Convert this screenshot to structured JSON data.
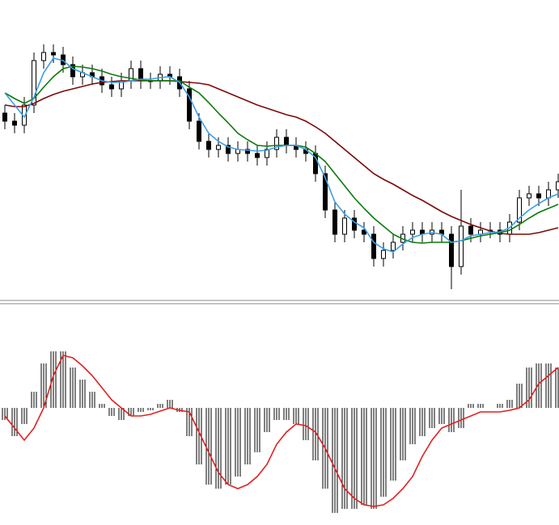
{
  "chart_data": [
    {
      "type": "candlestick",
      "color": "#000000",
      "up_fill": "#ffffff",
      "down_fill": "#000000",
      "ylim": [
        0,
        370
      ],
      "open": [
        230,
        220,
        215,
        240,
        295,
        305,
        302,
        290,
        275,
        280,
        275,
        265,
        260,
        270,
        285,
        270,
        270,
        278,
        275,
        260,
        220,
        195,
        185,
        190,
        180,
        185,
        180,
        175,
        185,
        200,
        190,
        185,
        180,
        155,
        110,
        80,
        100,
        85,
        80,
        50,
        60,
        70,
        80,
        85,
        80,
        85,
        80,
        40,
        90,
        80,
        85,
        85,
        80,
        95,
        125,
        130,
        125,
        135
      ],
      "high": [
        240,
        230,
        250,
        305,
        315,
        315,
        312,
        300,
        290,
        290,
        285,
        275,
        280,
        295,
        295,
        280,
        288,
        288,
        285,
        270,
        230,
        205,
        200,
        200,
        195,
        195,
        190,
        195,
        210,
        210,
        200,
        195,
        190,
        165,
        120,
        110,
        110,
        95,
        90,
        70,
        80,
        90,
        95,
        95,
        95,
        95,
        90,
        135,
        100,
        95,
        95,
        95,
        105,
        135,
        140,
        140,
        145,
        155
      ],
      "low": [
        210,
        205,
        205,
        230,
        285,
        292,
        280,
        265,
        265,
        265,
        255,
        250,
        250,
        260,
        260,
        260,
        260,
        265,
        250,
        210,
        185,
        175,
        175,
        170,
        170,
        170,
        165,
        165,
        175,
        180,
        175,
        170,
        145,
        100,
        70,
        70,
        75,
        70,
        40,
        40,
        50,
        60,
        70,
        70,
        70,
        70,
        12,
        30,
        70,
        70,
        75,
        70,
        70,
        85,
        115,
        115,
        115,
        125
      ],
      "close": [
        220,
        215,
        240,
        295,
        305,
        302,
        290,
        275,
        280,
        275,
        265,
        260,
        270,
        285,
        270,
        270,
        278,
        275,
        260,
        220,
        195,
        185,
        190,
        180,
        185,
        180,
        175,
        185,
        200,
        190,
        185,
        180,
        155,
        110,
        80,
        100,
        85,
        80,
        50,
        60,
        70,
        80,
        85,
        80,
        85,
        80,
        40,
        90,
        80,
        85,
        85,
        80,
        95,
        125,
        130,
        125,
        135,
        145
      ],
      "series": [
        {
          "color": "#7a0a0a",
          "values": [
            240,
            238,
            238,
            242,
            248,
            253,
            257,
            260,
            263,
            266,
            268,
            269,
            270,
            270,
            270,
            270,
            270,
            270,
            269,
            268,
            267,
            265,
            260,
            255,
            250,
            245,
            240,
            236,
            232,
            228,
            225,
            220,
            213,
            205,
            195,
            185,
            175,
            165,
            155,
            148,
            142,
            135,
            128,
            122,
            115,
            108,
            102,
            97,
            92,
            88,
            84,
            81,
            80,
            80,
            80,
            82,
            85,
            88
          ]
        },
        {
          "color": "#0a7a0a",
          "values": [
            255,
            248,
            242,
            248,
            262,
            275,
            285,
            288,
            287,
            285,
            282,
            278,
            275,
            273,
            271,
            270,
            270,
            270,
            270,
            262,
            255,
            243,
            230,
            218,
            205,
            197,
            190,
            189,
            190,
            190,
            190,
            188,
            180,
            170,
            155,
            140,
            125,
            112,
            100,
            90,
            80,
            74,
            70,
            69,
            70,
            70,
            70,
            72,
            75,
            78,
            80,
            82,
            85,
            92,
            100,
            107,
            112,
            117
          ]
        },
        {
          "color": "#3a9ee8",
          "values": [
            255,
            240,
            225,
            250,
            280,
            298,
            295,
            285,
            280,
            275,
            270,
            268,
            268,
            270,
            272,
            272,
            274,
            275,
            268,
            250,
            225,
            205,
            195,
            188,
            185,
            184,
            183,
            184,
            188,
            190,
            190,
            185,
            175,
            150,
            120,
            105,
            95,
            88,
            70,
            62,
            58,
            68,
            76,
            80,
            82,
            80,
            70,
            72,
            78,
            80,
            82,
            83,
            88,
            100,
            110,
            118,
            125,
            130
          ]
        }
      ]
    },
    {
      "type": "macd",
      "color": "#000000",
      "ylim": [
        -145,
        127
      ],
      "values": [
        -15,
        -35,
        -20,
        20,
        55,
        70,
        70,
        50,
        35,
        20,
        5,
        -10,
        -15,
        -10,
        -5,
        -3,
        5,
        10,
        -5,
        -35,
        -70,
        -95,
        -100,
        -95,
        -85,
        -70,
        -55,
        -30,
        -15,
        -15,
        -20,
        -40,
        -65,
        -100,
        -130,
        -125,
        -125,
        -120,
        -125,
        -110,
        -90,
        -65,
        -45,
        -35,
        -25,
        -20,
        -30,
        -25,
        5,
        5,
        0,
        5,
        10,
        30,
        50,
        55,
        55,
        50
      ],
      "series": [
        {
          "color": "#e02020",
          "values": [
            -10,
            -25,
            -40,
            -25,
            0,
            40,
            65,
            62,
            52,
            40,
            25,
            10,
            0,
            -10,
            -10,
            -8,
            -4,
            0,
            -3,
            -5,
            -30,
            -55,
            -80,
            -95,
            -100,
            -95,
            -85,
            -70,
            -45,
            -30,
            -20,
            -22,
            -30,
            -50,
            -75,
            -100,
            -112,
            -120,
            -122,
            -120,
            -112,
            -100,
            -85,
            -60,
            -40,
            -25,
            -20,
            -15,
            -10,
            -5,
            -5,
            -5,
            -3,
            0,
            10,
            30,
            40,
            50
          ]
        }
      ]
    }
  ]
}
